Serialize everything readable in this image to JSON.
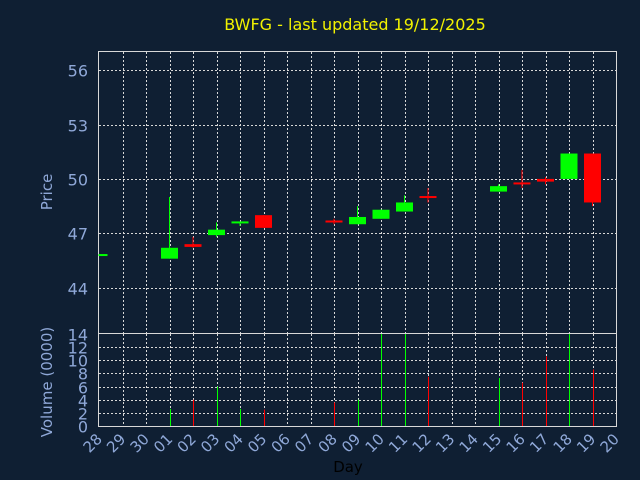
{
  "chart_data": {
    "type": "candlestick",
    "title": "BWFG - last updated 19/12/2025",
    "xlabel": "Day",
    "colors": {
      "background": "#0f1f33",
      "up": "#00ff00",
      "down": "#ff0000",
      "text": "#8fa8d8",
      "title": "#f2f200",
      "grid": "#d8d8d8"
    },
    "x_ticks": [
      "28",
      "29",
      "30",
      "01",
      "02",
      "03",
      "04",
      "05",
      "06",
      "07",
      "08",
      "09",
      "10",
      "11",
      "12",
      "13",
      "14",
      "15",
      "16",
      "17",
      "18",
      "19",
      "20"
    ],
    "price_panel": {
      "ylabel": "Price",
      "ylim": [
        41.5,
        57
      ],
      "y_ticks": [
        44,
        47,
        50,
        53,
        56
      ],
      "y_tick_labels": [
        "44",
        "47",
        "50",
        "53",
        "56"
      ],
      "candles": [
        {
          "day": "28",
          "open": 45.8,
          "high": 45.85,
          "low": 45.75,
          "close": 45.8
        },
        {
          "day": "01",
          "open": 45.6,
          "high": 49.0,
          "low": 45.6,
          "close": 46.2
        },
        {
          "day": "02",
          "open": 46.4,
          "high": 46.8,
          "low": 46.2,
          "close": 46.25
        },
        {
          "day": "03",
          "open": 46.9,
          "high": 47.6,
          "low": 46.8,
          "close": 47.2
        },
        {
          "day": "04",
          "open": 47.5,
          "high": 47.6,
          "low": 47.4,
          "close": 47.6
        },
        {
          "day": "05",
          "open": 48.0,
          "high": 48.0,
          "low": 47.3,
          "close": 47.3
        },
        {
          "day": "08",
          "open": 47.65,
          "high": 47.8,
          "low": 47.5,
          "close": 47.6
        },
        {
          "day": "09",
          "open": 47.5,
          "high": 48.5,
          "low": 47.5,
          "close": 47.9
        },
        {
          "day": "10",
          "open": 47.8,
          "high": 48.3,
          "low": 47.8,
          "close": 48.3
        },
        {
          "day": "11",
          "open": 48.2,
          "high": 49.1,
          "low": 48.2,
          "close": 48.7
        },
        {
          "day": "12",
          "open": 49.0,
          "high": 49.5,
          "low": 48.7,
          "close": 48.9
        },
        {
          "day": "15",
          "open": 49.3,
          "high": 49.7,
          "low": 49.3,
          "close": 49.6
        },
        {
          "day": "16",
          "open": 49.75,
          "high": 50.5,
          "low": 49.5,
          "close": 49.65
        },
        {
          "day": "17",
          "open": 50.0,
          "high": 50.1,
          "low": 49.7,
          "close": 49.85
        },
        {
          "day": "18",
          "open": 50.0,
          "high": 51.4,
          "low": 50.0,
          "close": 51.4
        },
        {
          "day": "19",
          "open": 51.4,
          "high": 51.4,
          "low": 48.5,
          "close": 48.7
        }
      ]
    },
    "volume_panel": {
      "ylabel": "Volume (0000)",
      "ylim": [
        0,
        14
      ],
      "y_ticks": [
        0,
        2,
        4,
        6,
        8,
        10,
        12,
        14
      ],
      "y_tick_labels": [
        "0",
        "2",
        "4",
        "6",
        "8",
        "10",
        "12",
        "14"
      ],
      "bars": [
        {
          "day": "01",
          "value": 2.6,
          "direction": "up"
        },
        {
          "day": "02",
          "value": 4.0,
          "direction": "down"
        },
        {
          "day": "03",
          "value": 6.0,
          "direction": "up"
        },
        {
          "day": "04",
          "value": 2.6,
          "direction": "up"
        },
        {
          "day": "05",
          "value": 2.5,
          "direction": "down"
        },
        {
          "day": "08",
          "value": 3.6,
          "direction": "down"
        },
        {
          "day": "09",
          "value": 4.0,
          "direction": "up"
        },
        {
          "day": "10",
          "value": 14.0,
          "direction": "up"
        },
        {
          "day": "11",
          "value": 14.0,
          "direction": "up"
        },
        {
          "day": "12",
          "value": 7.5,
          "direction": "down"
        },
        {
          "day": "15",
          "value": 7.3,
          "direction": "up"
        },
        {
          "day": "16",
          "value": 6.6,
          "direction": "down"
        },
        {
          "day": "17",
          "value": 10.6,
          "direction": "down"
        },
        {
          "day": "18",
          "value": 14.0,
          "direction": "up"
        },
        {
          "day": "19",
          "value": 8.6,
          "direction": "down"
        }
      ]
    }
  }
}
